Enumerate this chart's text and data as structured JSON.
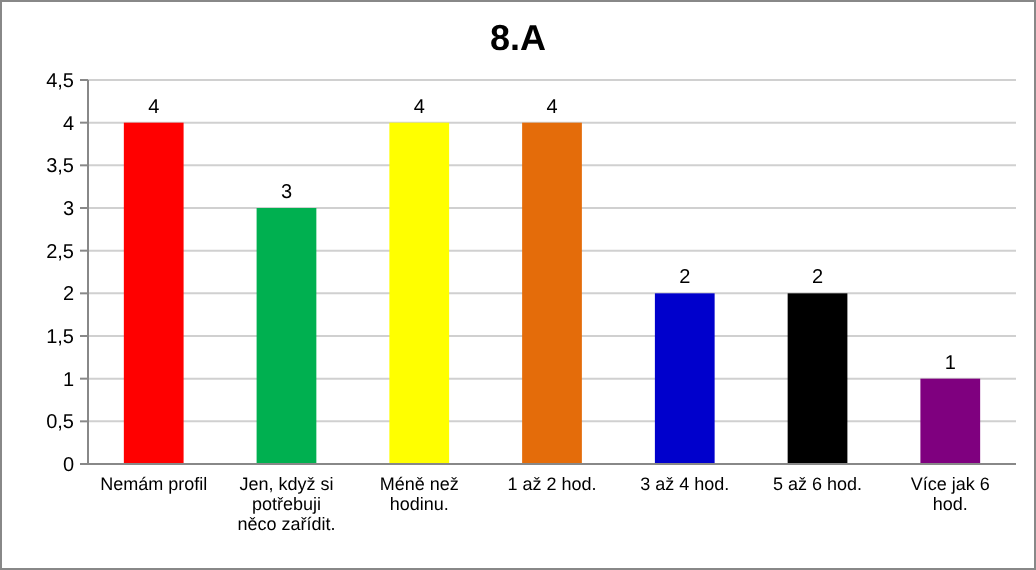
{
  "chart_data": {
    "type": "bar",
    "title": "8.A",
    "categories": [
      "Nemám profil",
      "Jen, když si potřebuji něco zařídit.",
      "Méně než hodinu.",
      "1 až 2 hod.",
      "3 až 4 hod.",
      "5 až 6 hod.",
      "Více jak 6 hod."
    ],
    "values": [
      4,
      3,
      4,
      4,
      2,
      2,
      1
    ],
    "colors": [
      "#ff0000",
      "#00b050",
      "#ffff00",
      "#e46c0a",
      "#0000cc",
      "#000000",
      "#7f007f"
    ],
    "ylim": [
      0,
      4.5
    ],
    "yticks": [
      0,
      {
        "value": 0.5,
        "label": "0,5"
      },
      1,
      {
        "value": 1.5,
        "label": "1,5"
      },
      2,
      {
        "value": 2.5,
        "label": "2,5"
      },
      3,
      {
        "value": 3.5,
        "label": "3,5"
      },
      4,
      {
        "value": 4.5,
        "label": "4,5"
      }
    ],
    "grid": true,
    "data_labels": true
  }
}
